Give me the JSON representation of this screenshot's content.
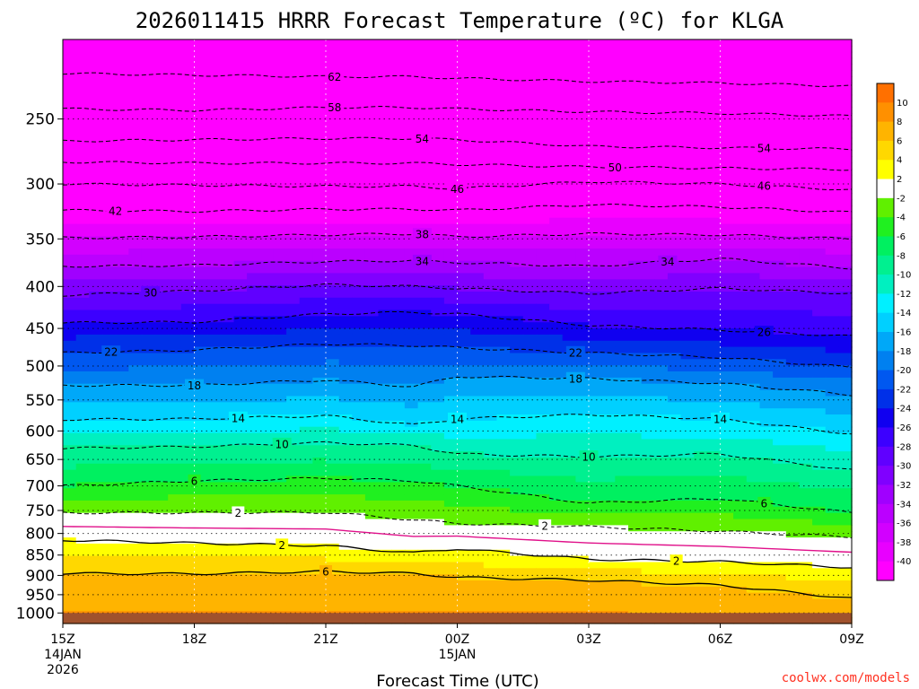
{
  "chart_data": {
    "type": "heatmap",
    "title": "2026011415 HRRR Forecast Temperature (ºC) for KLGA",
    "xlabel": "Forecast Time (UTC)",
    "ylabel": "",
    "credit": "coolwx.com/models",
    "x_ticks": [
      {
        "hour": 0,
        "label": "15Z",
        "sub1": "14JAN",
        "sub2": "2026"
      },
      {
        "hour": 3,
        "label": "18Z",
        "sub1": "",
        "sub2": ""
      },
      {
        "hour": 6,
        "label": "21Z",
        "sub1": "",
        "sub2": ""
      },
      {
        "hour": 9,
        "label": "00Z",
        "sub1": "15JAN",
        "sub2": ""
      },
      {
        "hour": 12,
        "label": "03Z",
        "sub1": "",
        "sub2": ""
      },
      {
        "hour": 15,
        "label": "06Z",
        "sub1": "",
        "sub2": ""
      },
      {
        "hour": 18,
        "label": "09Z",
        "sub1": "",
        "sub2": ""
      }
    ],
    "x_range_hours": [
      0,
      18
    ],
    "y_axis": "pressure (hPa, log scale, inverted)",
    "y_range": [
      1030,
      200
    ],
    "y_ticks": [
      "250",
      "300",
      "350",
      "400",
      "450",
      "500",
      "550",
      "600",
      "650",
      "700",
      "750",
      "800",
      "850",
      "900",
      "950",
      "1000"
    ],
    "ground_pressure_hpa": 1000,
    "colorbar": {
      "levels": [
        -40,
        -38,
        -36,
        -34,
        -32,
        -30,
        -28,
        -26,
        -24,
        -22,
        -20,
        -18,
        -16,
        -14,
        -12,
        -10,
        -8,
        -6,
        -4,
        -2,
        2,
        4,
        6,
        8,
        10
      ],
      "labels": [
        "10",
        "8",
        "6",
        "4",
        "2",
        "-2",
        "-4",
        "-6",
        "-8",
        "-10",
        "-12",
        "-14",
        "-16",
        "-18",
        "-20",
        "-22",
        "-24",
        "-26",
        "-28",
        "-30",
        "-32",
        "-34",
        "-36",
        "-38",
        "-40"
      ],
      "colors": [
        "#ff00ff",
        "#e800ff",
        "#d200ff",
        "#bb00ff",
        "#a000ff",
        "#8000ff",
        "#6000ff",
        "#3c00ff",
        "#1000f0",
        "#0030e8",
        "#0058f0",
        "#0080f0",
        "#00a8f8",
        "#00d0ff",
        "#00f0ff",
        "#00f0c0",
        "#00f090",
        "#00f060",
        "#20f020",
        "#60f000",
        "#ffffff",
        "#ffff00",
        "#ffd800",
        "#ffb400",
        "#ff9000",
        "#ff7000"
      ]
    },
    "profiles": [
      {
        "hour": 0,
        "p_by_temp": {
          "-62": 220,
          "-58": 243,
          "-54": 266,
          "-50": 282,
          "-46": 300,
          "-42": 323,
          "-38": 349,
          "-34": 378,
          "-30": 410,
          "-26": 443,
          "-22": 482,
          "-18": 528,
          "-14": 581,
          "-10": 630,
          "-6": 700,
          "-2": 755,
          "2": 815,
          "6": 895
        }
      },
      {
        "hour": 3,
        "p_by_temp": {
          "-62": 221,
          "-58": 244,
          "-54": 265,
          "-50": 283,
          "-46": 301,
          "-42": 324,
          "-38": 348,
          "-34": 377,
          "-30": 405,
          "-26": 442,
          "-22": 478,
          "-18": 528,
          "-14": 580,
          "-10": 627,
          "-6": 690,
          "-2": 755,
          "2": 822,
          "6": 896
        }
      },
      {
        "hour": 6,
        "p_by_temp": {
          "-62": 222,
          "-58": 242,
          "-54": 264,
          "-50": 283,
          "-46": 302,
          "-42": 322,
          "-38": 346,
          "-34": 373,
          "-30": 398,
          "-26": 432,
          "-22": 470,
          "-18": 520,
          "-14": 575,
          "-10": 620,
          "-6": 685,
          "-2": 754,
          "2": 828,
          "6": 890
        }
      },
      {
        "hour": 8,
        "p_by_temp": {
          "-62": 222,
          "-58": 242,
          "-54": 264,
          "-50": 283,
          "-46": 302,
          "-42": 322,
          "-38": 345,
          "-34": 372,
          "-30": 400,
          "-26": 430,
          "-22": 472,
          "-18": 530,
          "-14": 590,
          "-10": 625,
          "-6": 690,
          "-2": 770,
          "2": 845,
          "6": 895
        }
      },
      {
        "hour": 9,
        "p_by_temp": {
          "-62": 223,
          "-58": 243,
          "-54": 265,
          "-50": 284,
          "-46": 304,
          "-42": 323,
          "-38": 348,
          "-34": 374,
          "-30": 402,
          "-26": 432,
          "-22": 475,
          "-18": 515,
          "-14": 580,
          "-10": 640,
          "-6": 700,
          "-2": 778,
          "2": 835,
          "6": 905
        }
      },
      {
        "hour": 12,
        "p_by_temp": {
          "-62": 225,
          "-58": 245,
          "-54": 270,
          "-50": 286,
          "-46": 298,
          "-42": 318,
          "-38": 345,
          "-34": 378,
          "-30": 408,
          "-26": 446,
          "-22": 482,
          "-18": 518,
          "-14": 573,
          "-10": 645,
          "-6": 735,
          "-2": 785,
          "2": 860,
          "6": 912
        }
      },
      {
        "hour": 15,
        "p_by_temp": {
          "-62": 226,
          "-58": 246,
          "-54": 271,
          "-50": 287,
          "-46": 300,
          "-42": 320,
          "-38": 346,
          "-34": 370,
          "-30": 402,
          "-26": 452,
          "-22": 488,
          "-18": 525,
          "-14": 580,
          "-10": 640,
          "-6": 725,
          "-2": 795,
          "2": 866,
          "6": 925
        }
      },
      {
        "hour": 18,
        "p_by_temp": {
          "-62": 228,
          "-58": 248,
          "-54": 272,
          "-50": 288,
          "-46": 305,
          "-42": 325,
          "-38": 350,
          "-34": 380,
          "-30": 408,
          "-26": 460,
          "-22": 502,
          "-18": 542,
          "-14": 605,
          "-10": 670,
          "-6": 755,
          "-2": 808,
          "2": 880,
          "6": 960
        }
      }
    ],
    "top_temp_c": -64,
    "surface_temp_c": 9,
    "contour_labels": [
      {
        "text": "62",
        "temp": -62,
        "hour": 6.2
      },
      {
        "text": "58",
        "temp": -58,
        "hour": 6.2
      },
      {
        "text": "54",
        "temp": -54,
        "hour": 8.2
      },
      {
        "text": "54",
        "temp": -54,
        "hour": 16.0
      },
      {
        "text": "50",
        "temp": -50,
        "hour": 12.6
      },
      {
        "text": "46",
        "temp": -46,
        "hour": 9.0
      },
      {
        "text": "46",
        "temp": -46,
        "hour": 16.0
      },
      {
        "text": "42",
        "temp": -42,
        "hour": 1.2
      },
      {
        "text": "38",
        "temp": -38,
        "hour": 8.2
      },
      {
        "text": "34",
        "temp": -34,
        "hour": 8.2
      },
      {
        "text": "34",
        "temp": -34,
        "hour": 13.8
      },
      {
        "text": "30",
        "temp": -30,
        "hour": 2.0
      },
      {
        "text": "26",
        "temp": -26,
        "hour": 16.0
      },
      {
        "text": "22",
        "temp": -22,
        "hour": 1.1
      },
      {
        "text": "22",
        "temp": -22,
        "hour": 11.7
      },
      {
        "text": "18",
        "temp": -18,
        "hour": 3.0
      },
      {
        "text": "18",
        "temp": -18,
        "hour": 11.7
      },
      {
        "text": "14",
        "temp": -14,
        "hour": 4.0
      },
      {
        "text": "14",
        "temp": -14,
        "hour": 9.0
      },
      {
        "text": "14",
        "temp": -14,
        "hour": 15.0
      },
      {
        "text": "10",
        "temp": -10,
        "hour": 5.0
      },
      {
        "text": "10",
        "temp": -10,
        "hour": 12.0
      },
      {
        "text": "6",
        "temp": -6,
        "hour": 3.0
      },
      {
        "text": "6",
        "temp": -6,
        "hour": 16.0
      },
      {
        "text": "2",
        "temp": -2,
        "hour": 4.0
      },
      {
        "text": "2",
        "temp": -2,
        "hour": 11.0
      },
      {
        "text": "2",
        "temp": 2,
        "hour": 5.0
      },
      {
        "text": "2",
        "temp": 2,
        "hour": 14.0
      },
      {
        "text": "6",
        "temp": 6,
        "hour": 6.0
      }
    ]
  }
}
